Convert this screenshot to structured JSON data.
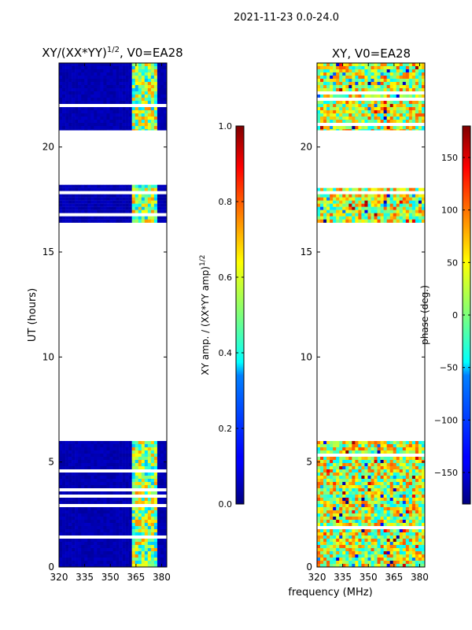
{
  "chart_data": [
    {
      "type": "heatmap",
      "title": "XY/(XX*YY)^{1/2}, V0=EA28",
      "title_main": "XY/(XX*YY)",
      "title_sup": "1/2",
      "title_tail": ", V0=EA28",
      "xlabel": "",
      "ylabel": "UT (hours)",
      "xlim": [
        320,
        383
      ],
      "ylim": [
        0,
        24
      ],
      "xticks": [
        "320",
        "335",
        "350",
        "365",
        "380"
      ],
      "xtick_values": [
        320,
        335,
        350,
        365,
        380
      ],
      "yticks": [
        "0",
        "5",
        "10",
        "15",
        "20"
      ],
      "ytick_values": [
        0,
        5,
        10,
        15,
        20
      ],
      "data_time_ranges_hours": [
        [
          0,
          6.0
        ],
        [
          16.4,
          18.2
        ],
        [
          20.8,
          24.0
        ]
      ],
      "colorbar": {
        "label_main": "XY amp. / (XX*YY amp)",
        "label_sup": "1/2",
        "range": [
          0.0,
          1.0
        ],
        "ticks": [
          "0.0",
          "0.2",
          "0.4",
          "0.6",
          "0.8",
          "1.0"
        ],
        "tick_values": [
          0.0,
          0.2,
          0.4,
          0.6,
          0.8,
          1.0
        ]
      }
    },
    {
      "type": "heatmap",
      "title": "XY, V0=EA28",
      "xlabel": "frequency (MHz)",
      "ylabel": "",
      "xlim": [
        320,
        383
      ],
      "ylim": [
        0,
        24
      ],
      "xticks": [
        "320",
        "335",
        "350",
        "365",
        "380"
      ],
      "xtick_values": [
        320,
        335,
        350,
        365,
        380
      ],
      "yticks": [
        "0",
        "5",
        "10",
        "15",
        "20"
      ],
      "ytick_values": [
        0,
        5,
        10,
        15,
        20
      ],
      "data_time_ranges_hours": [
        [
          0,
          6.0
        ],
        [
          16.4,
          18.2
        ],
        [
          20.8,
          24.0
        ]
      ],
      "colorbar": {
        "label": "phase (deg.)",
        "range": [
          -180,
          180
        ],
        "ticks": [
          "−150",
          "−100",
          "−50",
          "0",
          "50",
          "100",
          "150"
        ],
        "tick_values": [
          -150,
          -100,
          -50,
          0,
          50,
          100,
          150
        ]
      }
    }
  ],
  "suptitle": "2021-11-23 0.0-24.0",
  "shared_xlabel": "frequency (MHz)"
}
